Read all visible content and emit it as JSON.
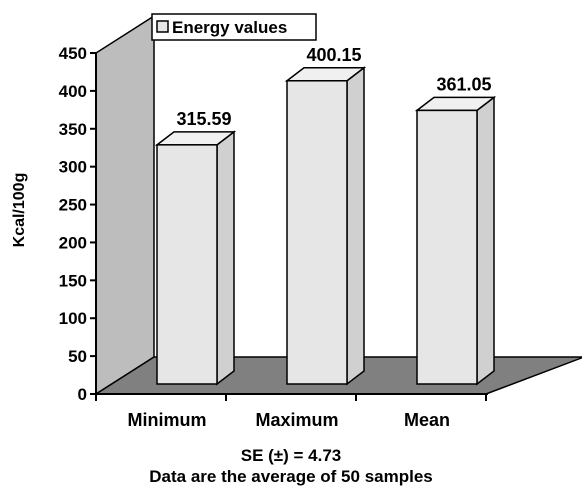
{
  "chart_data": {
    "type": "bar",
    "style": "3d",
    "title": "",
    "xlabel": "",
    "ylabel": "Kcal/100g",
    "ylim": [
      0,
      450
    ],
    "yticks": [
      0,
      50,
      100,
      150,
      200,
      250,
      300,
      350,
      400,
      450
    ],
    "grid": false,
    "legend_position": "top",
    "categories": [
      "Minimum",
      "Maximum",
      "Mean"
    ],
    "series": [
      {
        "name": "Energy values",
        "values": [
          315.59,
          400.15,
          361.05
        ]
      }
    ],
    "data_labels": [
      "315.59",
      "400.15",
      "361.05"
    ],
    "colors": {
      "bar": "#e6e6e6",
      "back_wall": "#bdbdbd",
      "floor": "#808080",
      "outline": "#000000"
    },
    "notes": [
      "SE (±) = 4.73",
      "Data are the average of 50 samples"
    ]
  }
}
